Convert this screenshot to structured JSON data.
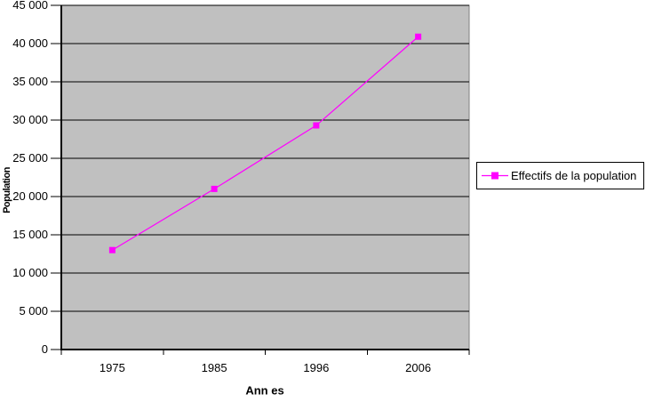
{
  "chart_data": {
    "type": "line",
    "title": "",
    "categories": [
      "1975",
      "1985",
      "1996",
      "2006"
    ],
    "series": [
      {
        "name": "Effectifs de la population",
        "color": "#FF00FF",
        "marker": "square",
        "values": [
          13000,
          21000,
          29300,
          40900
        ]
      }
    ],
    "xlabel": "Ann es",
    "ylabel": "Population",
    "ylim": [
      0,
      45000
    ],
    "ytick_step": 5000,
    "ytick_labels": [
      "0",
      "5 000",
      "10 000",
      "15 000",
      "20 000",
      "25 000",
      "30 000",
      "35 000",
      "40 000",
      "45 000"
    ],
    "grid": true,
    "legend_position": "right",
    "colors": {
      "plot_bg": "#C0C0C0",
      "plot_border": "#808080",
      "gridline": "#000000",
      "axis": "#000000",
      "text": "#000000",
      "legend_bg": "#FFFFFF",
      "legend_border": "#000000",
      "page_bg": "#FFFFFF"
    }
  }
}
